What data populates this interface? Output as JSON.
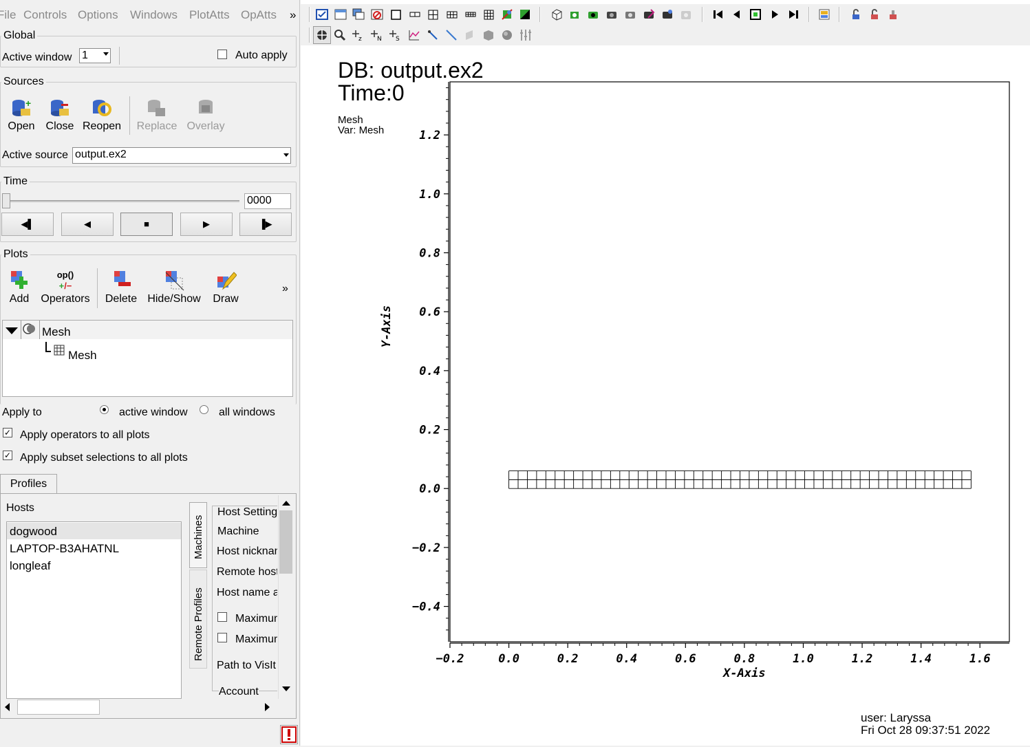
{
  "menu": [
    "File",
    "Controls",
    "Options",
    "Windows",
    "PlotAtts",
    "OpAtts"
  ],
  "menu_more": "»",
  "global": {
    "title": "Global",
    "active_window_label": "Active window",
    "active_window_value": "1",
    "auto_apply_label": "Auto apply"
  },
  "sources": {
    "title": "Sources",
    "buttons": [
      "Open",
      "Close",
      "Reopen",
      "Replace",
      "Overlay"
    ],
    "active_source_label": "Active source",
    "active_source_value": "output.ex2"
  },
  "time": {
    "title": "Time",
    "value": "0000",
    "slider_fraction": 0.0
  },
  "plots": {
    "title": "Plots",
    "buttons": [
      "Add",
      "Operators",
      "Delete",
      "Hide/Show",
      "Draw"
    ],
    "more": "»",
    "operators_icon_text": "op()",
    "plot_name": "Mesh",
    "plot_child": "Mesh"
  },
  "apply_to": {
    "label": "Apply to",
    "active": "active window",
    "all": "all windows"
  },
  "checks": {
    "apply_ops": "Apply operators to all plots",
    "apply_subset": "Apply subset selections to all plots"
  },
  "profiles": {
    "tab": "Profiles",
    "hosts_label": "Hosts",
    "hosts": [
      "dogwood",
      "LAPTOP-B3AHATNL",
      "longleaf"
    ],
    "vtabs": [
      "Machines",
      "Remote Profiles"
    ],
    "settings": [
      "Host Settings",
      "Machine",
      "Host nickname",
      "Remote host",
      "Host name a",
      "Maximum",
      "Maximum",
      "Path to VisIt",
      "Account"
    ]
  },
  "vis": {
    "db": "DB: output.ex2",
    "time": "Time:0",
    "plot_type": "Mesh",
    "var": "Var: Mesh",
    "x_axis": "X-Axis",
    "y_axis": "Y-Axis",
    "user": "user: Laryssa",
    "date": "Fri Oct 28 09:37:51 2022"
  },
  "chart_data": {
    "type": "mesh",
    "title": "DB: output.ex2",
    "xlabel": "X-Axis",
    "ylabel": "Y-Axis",
    "xlim": [
      -0.2,
      1.7
    ],
    "ylim": [
      -0.52,
      1.38
    ],
    "xticks": [
      -0.2,
      0.0,
      0.2,
      0.4,
      0.6,
      0.8,
      1.0,
      1.2,
      1.4,
      1.6
    ],
    "yticks": [
      -0.4,
      -0.2,
      0.0,
      0.2,
      0.4,
      0.6,
      0.8,
      1.0,
      1.2
    ],
    "xtick_labels": [
      "−0.2",
      "0.0",
      "0.2",
      "0.4",
      "0.6",
      "0.8",
      "1.0",
      "1.2",
      "1.4",
      "1.6"
    ],
    "ytick_labels": [
      "−0.4",
      "−0.2",
      "0.0",
      "0.2",
      "0.4",
      "0.6",
      "0.8",
      "1.0",
      "1.2"
    ],
    "mesh": {
      "x_range": [
        0.0,
        1.57
      ],
      "y_range": [
        0.0,
        0.06
      ],
      "cells_x": 50,
      "cells_y": 2
    }
  }
}
